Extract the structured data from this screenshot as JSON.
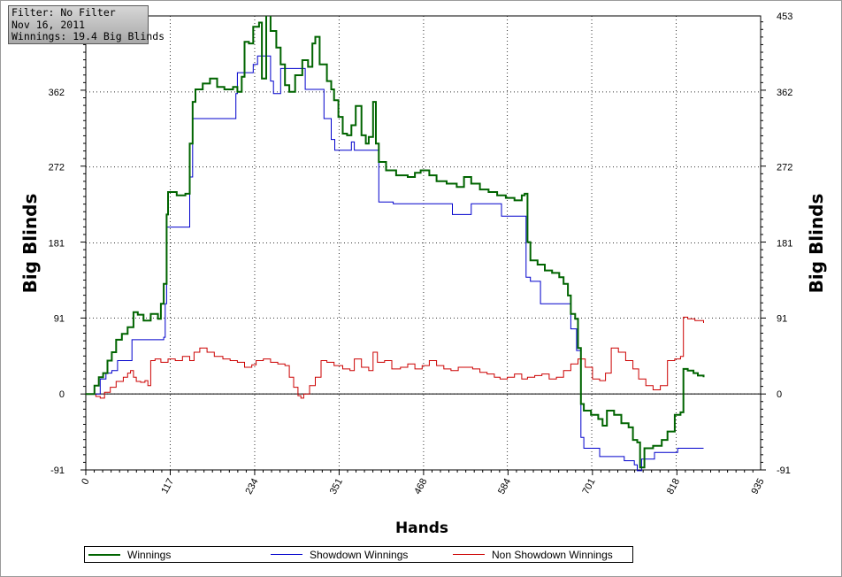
{
  "info_box": {
    "line1": "Filter: No Filter",
    "line2": "Nov 16, 2011",
    "line3": "Winnings: 19.4 Big Blinds"
  },
  "chart_data": {
    "type": "line",
    "xlabel": "Hands",
    "ylabel": "Big Blinds",
    "xlim": [
      0,
      935
    ],
    "ylim": [
      -91,
      453
    ],
    "x_ticks": [
      0,
      117,
      234,
      351,
      468,
      584,
      701,
      818,
      935
    ],
    "x_tick_labels": [
      "0",
      "117",
      "234",
      "351",
      "468",
      "584",
      "701",
      "818",
      "935"
    ],
    "y_ticks": [
      -91,
      0,
      91,
      181,
      272,
      362,
      453
    ],
    "y_tick_labels": [
      "-91",
      "0",
      "91",
      "181",
      "272",
      "362",
      "453"
    ],
    "grid": true,
    "legend_position": "bottom",
    "series": [
      {
        "name": "Winnings",
        "color": "#006400",
        "points": [
          [
            0,
            0
          ],
          [
            8,
            0
          ],
          [
            12,
            10
          ],
          [
            18,
            20
          ],
          [
            24,
            25
          ],
          [
            30,
            40
          ],
          [
            36,
            50
          ],
          [
            42,
            65
          ],
          [
            50,
            72
          ],
          [
            58,
            80
          ],
          [
            66,
            98
          ],
          [
            72,
            95
          ],
          [
            80,
            88
          ],
          [
            90,
            96
          ],
          [
            100,
            90
          ],
          [
            104,
            108
          ],
          [
            108,
            132
          ],
          [
            112,
            215
          ],
          [
            114,
            242
          ],
          [
            126,
            238
          ],
          [
            138,
            240
          ],
          [
            144,
            300
          ],
          [
            148,
            350
          ],
          [
            152,
            365
          ],
          [
            162,
            372
          ],
          [
            172,
            378
          ],
          [
            182,
            368
          ],
          [
            192,
            365
          ],
          [
            204,
            368
          ],
          [
            210,
            362
          ],
          [
            216,
            380
          ],
          [
            220,
            422
          ],
          [
            226,
            420
          ],
          [
            232,
            440
          ],
          [
            240,
            445
          ],
          [
            244,
            378
          ],
          [
            250,
            455
          ],
          [
            256,
            435
          ],
          [
            264,
            415
          ],
          [
            270,
            395
          ],
          [
            276,
            370
          ],
          [
            282,
            362
          ],
          [
            290,
            382
          ],
          [
            300,
            400
          ],
          [
            308,
            392
          ],
          [
            314,
            420
          ],
          [
            318,
            428
          ],
          [
            324,
            395
          ],
          [
            334,
            375
          ],
          [
            340,
            365
          ],
          [
            344,
            352
          ],
          [
            350,
            332
          ],
          [
            356,
            312
          ],
          [
            362,
            310
          ],
          [
            368,
            322
          ],
          [
            374,
            345
          ],
          [
            382,
            310
          ],
          [
            388,
            300
          ],
          [
            392,
            308
          ],
          [
            398,
            350
          ],
          [
            402,
            300
          ],
          [
            406,
            278
          ],
          [
            416,
            268
          ],
          [
            430,
            262
          ],
          [
            446,
            260
          ],
          [
            456,
            265
          ],
          [
            464,
            268
          ],
          [
            476,
            262
          ],
          [
            486,
            255
          ],
          [
            500,
            252
          ],
          [
            514,
            248
          ],
          [
            524,
            260
          ],
          [
            534,
            252
          ],
          [
            546,
            245
          ],
          [
            558,
            242
          ],
          [
            570,
            238
          ],
          [
            582,
            235
          ],
          [
            594,
            232
          ],
          [
            604,
            238
          ],
          [
            608,
            240
          ],
          [
            612,
            182
          ],
          [
            616,
            160
          ],
          [
            626,
            155
          ],
          [
            636,
            148
          ],
          [
            646,
            145
          ],
          [
            656,
            140
          ],
          [
            662,
            132
          ],
          [
            668,
            118
          ],
          [
            672,
            96
          ],
          [
            678,
            90
          ],
          [
            682,
            55
          ],
          [
            686,
            -12
          ],
          [
            690,
            -20
          ],
          [
            700,
            -25
          ],
          [
            710,
            -30
          ],
          [
            716,
            -38
          ],
          [
            722,
            -20
          ],
          [
            732,
            -25
          ],
          [
            742,
            -35
          ],
          [
            752,
            -40
          ],
          [
            758,
            -55
          ],
          [
            764,
            -58
          ],
          [
            768,
            -88
          ],
          [
            774,
            -65
          ],
          [
            786,
            -62
          ],
          [
            798,
            -55
          ],
          [
            806,
            -45
          ],
          [
            816,
            -25
          ],
          [
            824,
            -22
          ],
          [
            828,
            30
          ],
          [
            834,
            28
          ],
          [
            842,
            25
          ],
          [
            848,
            22
          ],
          [
            856,
            20
          ]
        ]
      },
      {
        "name": "Showdown Winnings",
        "color": "#0000cc",
        "points": [
          [
            0,
            0
          ],
          [
            15,
            0
          ],
          [
            20,
            18
          ],
          [
            28,
            25
          ],
          [
            36,
            28
          ],
          [
            44,
            40
          ],
          [
            54,
            40
          ],
          [
            62,
            40
          ],
          [
            64,
            65
          ],
          [
            80,
            65
          ],
          [
            96,
            65
          ],
          [
            108,
            68
          ],
          [
            110,
            108
          ],
          [
            112,
            200
          ],
          [
            138,
            200
          ],
          [
            144,
            260
          ],
          [
            148,
            330
          ],
          [
            166,
            330
          ],
          [
            196,
            330
          ],
          [
            206,
            330
          ],
          [
            208,
            360
          ],
          [
            210,
            385
          ],
          [
            226,
            385
          ],
          [
            232,
            395
          ],
          [
            238,
            405
          ],
          [
            254,
            405
          ],
          [
            256,
            375
          ],
          [
            260,
            360
          ],
          [
            270,
            390
          ],
          [
            296,
            390
          ],
          [
            304,
            365
          ],
          [
            320,
            365
          ],
          [
            330,
            330
          ],
          [
            340,
            305
          ],
          [
            345,
            292
          ],
          [
            356,
            292
          ],
          [
            364,
            292
          ],
          [
            368,
            302
          ],
          [
            372,
            292
          ],
          [
            398,
            292
          ],
          [
            406,
            230
          ],
          [
            426,
            228
          ],
          [
            456,
            228
          ],
          [
            476,
            228
          ],
          [
            496,
            228
          ],
          [
            508,
            215
          ],
          [
            528,
            215
          ],
          [
            534,
            228
          ],
          [
            574,
            228
          ],
          [
            576,
            213
          ],
          [
            604,
            213
          ],
          [
            610,
            140
          ],
          [
            616,
            135
          ],
          [
            626,
            135
          ],
          [
            630,
            108
          ],
          [
            656,
            108
          ],
          [
            670,
            108
          ],
          [
            672,
            78
          ],
          [
            680,
            52
          ],
          [
            686,
            -52
          ],
          [
            690,
            -65
          ],
          [
            708,
            -65
          ],
          [
            712,
            -75
          ],
          [
            742,
            -75
          ],
          [
            746,
            -80
          ],
          [
            760,
            -85
          ],
          [
            764,
            -92
          ],
          [
            770,
            -78
          ],
          [
            788,
            -70
          ],
          [
            820,
            -65
          ],
          [
            856,
            -65
          ]
        ]
      },
      {
        "name": "Non Showdown Winnings",
        "color": "#cc0000",
        "points": [
          [
            0,
            0
          ],
          [
            10,
            0
          ],
          [
            14,
            -3
          ],
          [
            20,
            -5
          ],
          [
            26,
            2
          ],
          [
            34,
            8
          ],
          [
            42,
            15
          ],
          [
            52,
            20
          ],
          [
            58,
            25
          ],
          [
            62,
            28
          ],
          [
            66,
            20
          ],
          [
            70,
            15
          ],
          [
            76,
            14
          ],
          [
            82,
            16
          ],
          [
            86,
            10
          ],
          [
            90,
            40
          ],
          [
            96,
            42
          ],
          [
            104,
            38
          ],
          [
            114,
            42
          ],
          [
            124,
            40
          ],
          [
            134,
            45
          ],
          [
            144,
            40
          ],
          [
            150,
            50
          ],
          [
            158,
            55
          ],
          [
            168,
            50
          ],
          [
            178,
            45
          ],
          [
            190,
            42
          ],
          [
            200,
            40
          ],
          [
            210,
            38
          ],
          [
            220,
            32
          ],
          [
            230,
            35
          ],
          [
            236,
            40
          ],
          [
            246,
            42
          ],
          [
            256,
            38
          ],
          [
            266,
            36
          ],
          [
            276,
            34
          ],
          [
            282,
            20
          ],
          [
            288,
            8
          ],
          [
            294,
            -2
          ],
          [
            298,
            -5
          ],
          [
            302,
            0
          ],
          [
            310,
            10
          ],
          [
            318,
            20
          ],
          [
            326,
            40
          ],
          [
            334,
            38
          ],
          [
            344,
            34
          ],
          [
            356,
            30
          ],
          [
            366,
            28
          ],
          [
            372,
            42
          ],
          [
            382,
            32
          ],
          [
            392,
            28
          ],
          [
            398,
            50
          ],
          [
            404,
            38
          ],
          [
            414,
            40
          ],
          [
            424,
            30
          ],
          [
            436,
            32
          ],
          [
            446,
            36
          ],
          [
            456,
            30
          ],
          [
            466,
            34
          ],
          [
            476,
            40
          ],
          [
            486,
            34
          ],
          [
            496,
            30
          ],
          [
            506,
            28
          ],
          [
            516,
            32
          ],
          [
            526,
            32
          ],
          [
            536,
            30
          ],
          [
            546,
            26
          ],
          [
            556,
            24
          ],
          [
            566,
            20
          ],
          [
            574,
            18
          ],
          [
            584,
            20
          ],
          [
            594,
            24
          ],
          [
            604,
            18
          ],
          [
            612,
            20
          ],
          [
            622,
            22
          ],
          [
            632,
            24
          ],
          [
            642,
            18
          ],
          [
            652,
            20
          ],
          [
            662,
            28
          ],
          [
            672,
            36
          ],
          [
            682,
            42
          ],
          [
            692,
            32
          ],
          [
            702,
            18
          ],
          [
            712,
            16
          ],
          [
            720,
            25
          ],
          [
            728,
            55
          ],
          [
            738,
            50
          ],
          [
            748,
            40
          ],
          [
            758,
            30
          ],
          [
            766,
            18
          ],
          [
            776,
            10
          ],
          [
            786,
            5
          ],
          [
            796,
            10
          ],
          [
            806,
            40
          ],
          [
            816,
            42
          ],
          [
            824,
            45
          ],
          [
            828,
            92
          ],
          [
            834,
            90
          ],
          [
            844,
            88
          ],
          [
            856,
            85
          ]
        ]
      }
    ]
  }
}
